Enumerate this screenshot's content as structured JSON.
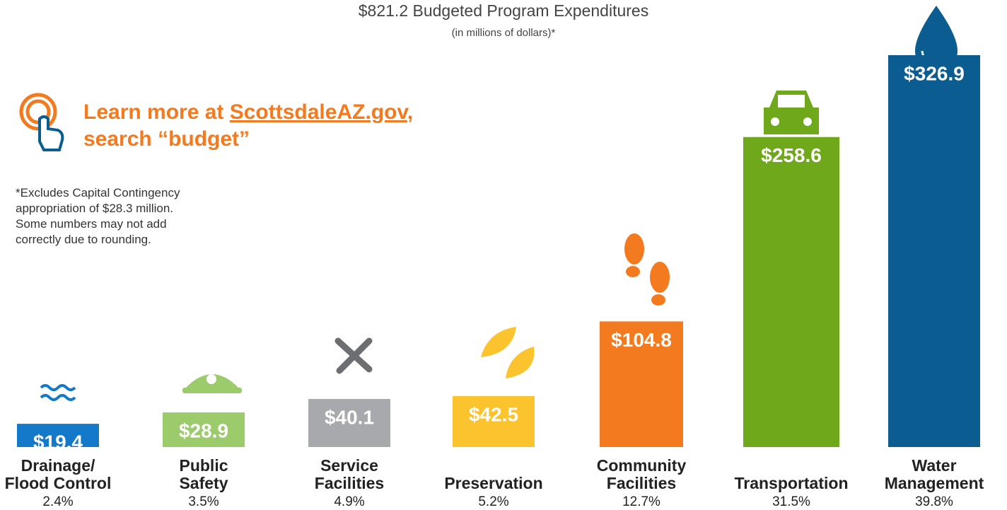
{
  "chart_data": {
    "type": "bar",
    "title": "$821.2 Budgeted Program Expenditures",
    "subtitle": "(in millions of dollars)*",
    "link_prefix": "Learn more at ",
    "link_text": "ScottsdaleAZ.gov",
    "link_suffix": ",",
    "link_line2": "search “budget”",
    "footnote": "*Excludes Capital Contingency\nappropriation of $28.3 million.\nSome numbers may not add\ncorrectly due to rounding.",
    "categories": [
      "Drainage/\nFlood Control",
      "Public\nSafety",
      "Service\nFacilities",
      "Preservation",
      "Community\nFacilities",
      "Transportation",
      "Water\nManagement"
    ],
    "values": [
      19.4,
      28.9,
      40.1,
      42.5,
      104.8,
      258.6,
      326.9
    ],
    "value_labels": [
      "$19.4",
      "$28.9",
      "$40.1",
      "$42.5",
      "$104.8",
      "$258.6",
      "$326.9"
    ],
    "percentages": [
      2.4,
      3.5,
      4.9,
      5.2,
      12.7,
      31.5,
      39.8
    ],
    "percentage_labels": [
      "2.4%",
      "3.5%",
      "4.9%",
      "5.2%",
      "12.7%",
      "31.5%",
      "39.8%"
    ],
    "colors": [
      "#1479c9",
      "#9ccb6b",
      "#a7a9ac",
      "#fbc32e",
      "#f47a20",
      "#6fa81b",
      "#0b5d91"
    ]
  }
}
